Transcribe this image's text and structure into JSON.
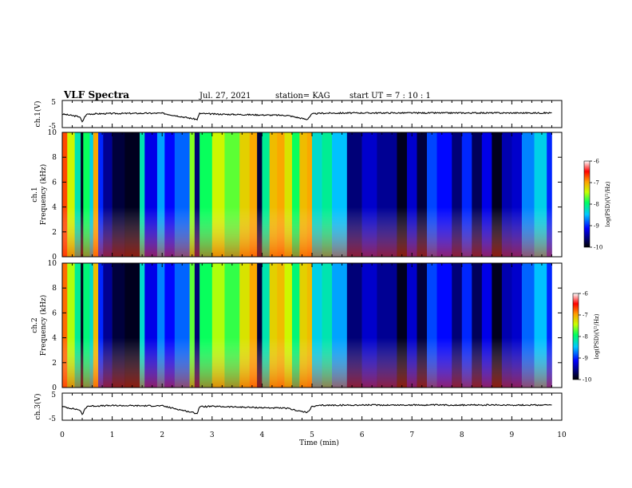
{
  "header": {
    "title": "VLF Spectra",
    "date": "Jul. 27, 2021",
    "station": "station= KAG",
    "start": "start UT =  7 : 10 : 1"
  },
  "chart_data": [
    {
      "type": "line",
      "panel": "ch1-voltage",
      "ylabel": "ch.1(V)",
      "ylim": [
        -5,
        5
      ],
      "yticks": [
        "5",
        "-5"
      ],
      "xlim": [
        0,
        10
      ],
      "trace": {
        "t": [
          0,
          0.35,
          0.4,
          0.45,
          0.5,
          1.0,
          2.0,
          2.7,
          2.75,
          3.0,
          4.5,
          4.9,
          5.0,
          5.2,
          6.0,
          7.0,
          8.0,
          9.0,
          9.8
        ],
        "v": [
          0.0,
          -1.0,
          -3.0,
          -1.0,
          0.0,
          0.2,
          0.3,
          -2.0,
          0.2,
          0.0,
          -0.5,
          -2.0,
          0.0,
          0.3,
          0.4,
          0.4,
          0.4,
          0.4,
          0.4
        ]
      }
    },
    {
      "type": "heatmap",
      "panel": "ch1-spectrogram",
      "ylabel_line1": "ch.1",
      "ylabel_line2": "Frequency (kHz)",
      "ylim": [
        0,
        10
      ],
      "yticks": [
        "0",
        "2",
        "4",
        "6",
        "8",
        "10"
      ],
      "xlim": [
        0,
        10
      ],
      "colorbar": {
        "label": "log(PSD)(V²/Hz)",
        "range": [
          -10,
          -6
        ],
        "ticks": [
          "-6",
          "-7",
          "-8",
          "-9",
          "-10"
        ]
      },
      "segments": [
        [
          0.0,
          0.1,
          -6.7
        ],
        [
          0.1,
          0.25,
          -7.4
        ],
        [
          0.25,
          0.37,
          -8.2
        ],
        [
          0.37,
          0.42,
          -9.9
        ],
        [
          0.42,
          0.55,
          -7.9
        ],
        [
          0.55,
          0.62,
          -8.4
        ],
        [
          0.62,
          0.72,
          -7.0
        ],
        [
          0.72,
          0.82,
          -9.0
        ],
        [
          0.82,
          1.0,
          -9.5
        ],
        [
          1.0,
          1.25,
          -9.8
        ],
        [
          1.25,
          1.55,
          -9.9
        ],
        [
          1.55,
          1.65,
          -8.2
        ],
        [
          1.65,
          1.9,
          -9.2
        ],
        [
          1.9,
          2.05,
          -8.6
        ],
        [
          2.05,
          2.25,
          -9.1
        ],
        [
          2.25,
          2.55,
          -8.8
        ],
        [
          2.55,
          2.65,
          -7.6
        ],
        [
          2.65,
          2.75,
          -9.6
        ],
        [
          2.75,
          3.0,
          -7.9
        ],
        [
          3.0,
          3.25,
          -7.4
        ],
        [
          3.25,
          3.55,
          -7.7
        ],
        [
          3.55,
          3.75,
          -7.2
        ],
        [
          3.75,
          3.9,
          -7.0
        ],
        [
          3.9,
          4.0,
          -9.8
        ],
        [
          4.0,
          4.15,
          -8.1
        ],
        [
          4.15,
          4.3,
          -7.1
        ],
        [
          4.3,
          4.45,
          -7.0
        ],
        [
          4.45,
          4.6,
          -7.3
        ],
        [
          4.6,
          4.75,
          -7.9
        ],
        [
          4.75,
          4.9,
          -7.1
        ],
        [
          4.9,
          5.0,
          -7.0
        ],
        [
          5.0,
          5.2,
          -8.3
        ],
        [
          5.2,
          5.4,
          -8.1
        ],
        [
          5.4,
          5.7,
          -8.5
        ],
        [
          5.7,
          6.0,
          -9.6
        ],
        [
          6.0,
          6.3,
          -9.3
        ],
        [
          6.3,
          6.7,
          -9.5
        ],
        [
          6.7,
          6.9,
          -9.9
        ],
        [
          6.9,
          7.1,
          -9.3
        ],
        [
          7.1,
          7.3,
          -9.8
        ],
        [
          7.3,
          7.5,
          -8.9
        ],
        [
          7.5,
          7.8,
          -9.1
        ],
        [
          7.8,
          8.0,
          -9.6
        ],
        [
          8.0,
          8.2,
          -9.0
        ],
        [
          8.2,
          8.4,
          -9.7
        ],
        [
          8.4,
          8.6,
          -9.2
        ],
        [
          8.6,
          8.8,
          -9.9
        ],
        [
          8.8,
          9.0,
          -9.4
        ],
        [
          9.0,
          9.2,
          -9.3
        ],
        [
          9.2,
          9.45,
          -8.7
        ],
        [
          9.45,
          9.7,
          -8.4
        ],
        [
          9.7,
          9.8,
          -9.0
        ]
      ]
    },
    {
      "type": "heatmap",
      "panel": "ch2-spectrogram",
      "ylabel_line1": "ch.2",
      "ylabel_line2": "Frequency (kHz)",
      "ylim": [
        0,
        10
      ],
      "yticks": [
        "0",
        "2",
        "4",
        "6",
        "8",
        "10"
      ],
      "xlim": [
        0,
        10
      ],
      "colorbar": {
        "label": "log(PSD)(V²/Hz)",
        "range": [
          -10,
          -6
        ],
        "ticks": [
          "-6",
          "-7",
          "-8",
          "-9",
          "-10"
        ]
      },
      "segments": [
        [
          0.0,
          0.1,
          -6.8
        ],
        [
          0.1,
          0.25,
          -7.5
        ],
        [
          0.25,
          0.37,
          -8.1
        ],
        [
          0.37,
          0.42,
          -9.9
        ],
        [
          0.42,
          0.55,
          -8.0
        ],
        [
          0.55,
          0.62,
          -8.3
        ],
        [
          0.62,
          0.72,
          -7.1
        ],
        [
          0.72,
          0.82,
          -9.0
        ],
        [
          0.82,
          1.0,
          -9.5
        ],
        [
          1.0,
          1.25,
          -9.8
        ],
        [
          1.25,
          1.55,
          -9.9
        ],
        [
          1.55,
          1.65,
          -8.3
        ],
        [
          1.65,
          1.9,
          -9.2
        ],
        [
          1.9,
          2.05,
          -8.7
        ],
        [
          2.05,
          2.25,
          -9.1
        ],
        [
          2.25,
          2.55,
          -8.8
        ],
        [
          2.55,
          2.65,
          -7.7
        ],
        [
          2.65,
          2.75,
          -9.6
        ],
        [
          2.75,
          3.0,
          -7.9
        ],
        [
          3.0,
          3.25,
          -7.5
        ],
        [
          3.25,
          3.55,
          -7.8
        ],
        [
          3.55,
          3.75,
          -7.3
        ],
        [
          3.75,
          3.9,
          -7.0
        ],
        [
          3.9,
          4.0,
          -9.8
        ],
        [
          4.0,
          4.15,
          -8.2
        ],
        [
          4.15,
          4.3,
          -7.2
        ],
        [
          4.3,
          4.45,
          -7.1
        ],
        [
          4.45,
          4.6,
          -7.4
        ],
        [
          4.6,
          4.75,
          -8.0
        ],
        [
          4.75,
          4.9,
          -7.2
        ],
        [
          4.9,
          5.0,
          -7.1
        ],
        [
          5.0,
          5.2,
          -8.4
        ],
        [
          5.2,
          5.4,
          -8.2
        ],
        [
          5.4,
          5.7,
          -8.6
        ],
        [
          5.7,
          6.0,
          -9.6
        ],
        [
          6.0,
          6.3,
          -9.3
        ],
        [
          6.3,
          6.7,
          -9.5
        ],
        [
          6.7,
          6.9,
          -9.9
        ],
        [
          6.9,
          7.1,
          -9.3
        ],
        [
          7.1,
          7.3,
          -9.8
        ],
        [
          7.3,
          7.5,
          -8.9
        ],
        [
          7.5,
          7.8,
          -9.1
        ],
        [
          7.8,
          8.0,
          -9.6
        ],
        [
          8.0,
          8.2,
          -9.0
        ],
        [
          8.2,
          8.4,
          -9.7
        ],
        [
          8.4,
          8.6,
          -9.2
        ],
        [
          8.6,
          8.8,
          -9.9
        ],
        [
          8.8,
          9.0,
          -9.4
        ],
        [
          9.0,
          9.2,
          -9.3
        ],
        [
          9.2,
          9.45,
          -8.8
        ],
        [
          9.45,
          9.7,
          -8.5
        ],
        [
          9.7,
          9.8,
          -9.0
        ]
      ]
    },
    {
      "type": "line",
      "panel": "ch3-voltage",
      "ylabel": "ch.3(V)",
      "ylim": [
        -5,
        5
      ],
      "yticks": [
        "5",
        "-5"
      ],
      "xlim": [
        0,
        10
      ],
      "trace": {
        "t": [
          0,
          0.35,
          0.4,
          0.45,
          0.5,
          1.0,
          2.0,
          2.7,
          2.75,
          3.0,
          4.5,
          4.9,
          5.0,
          5.2,
          6.0,
          7.0,
          8.0,
          9.0,
          9.8
        ],
        "v": [
          0.0,
          -1.2,
          -3.0,
          -1.0,
          0.2,
          0.4,
          0.3,
          -2.5,
          0.0,
          0.1,
          -0.6,
          -2.2,
          0.0,
          0.5,
          0.6,
          0.6,
          0.6,
          0.6,
          0.6
        ]
      },
      "xlabel": "Time (min)",
      "xticks": [
        "0",
        "1",
        "2",
        "3",
        "4",
        "5",
        "6",
        "7",
        "8",
        "9",
        "10"
      ]
    }
  ]
}
